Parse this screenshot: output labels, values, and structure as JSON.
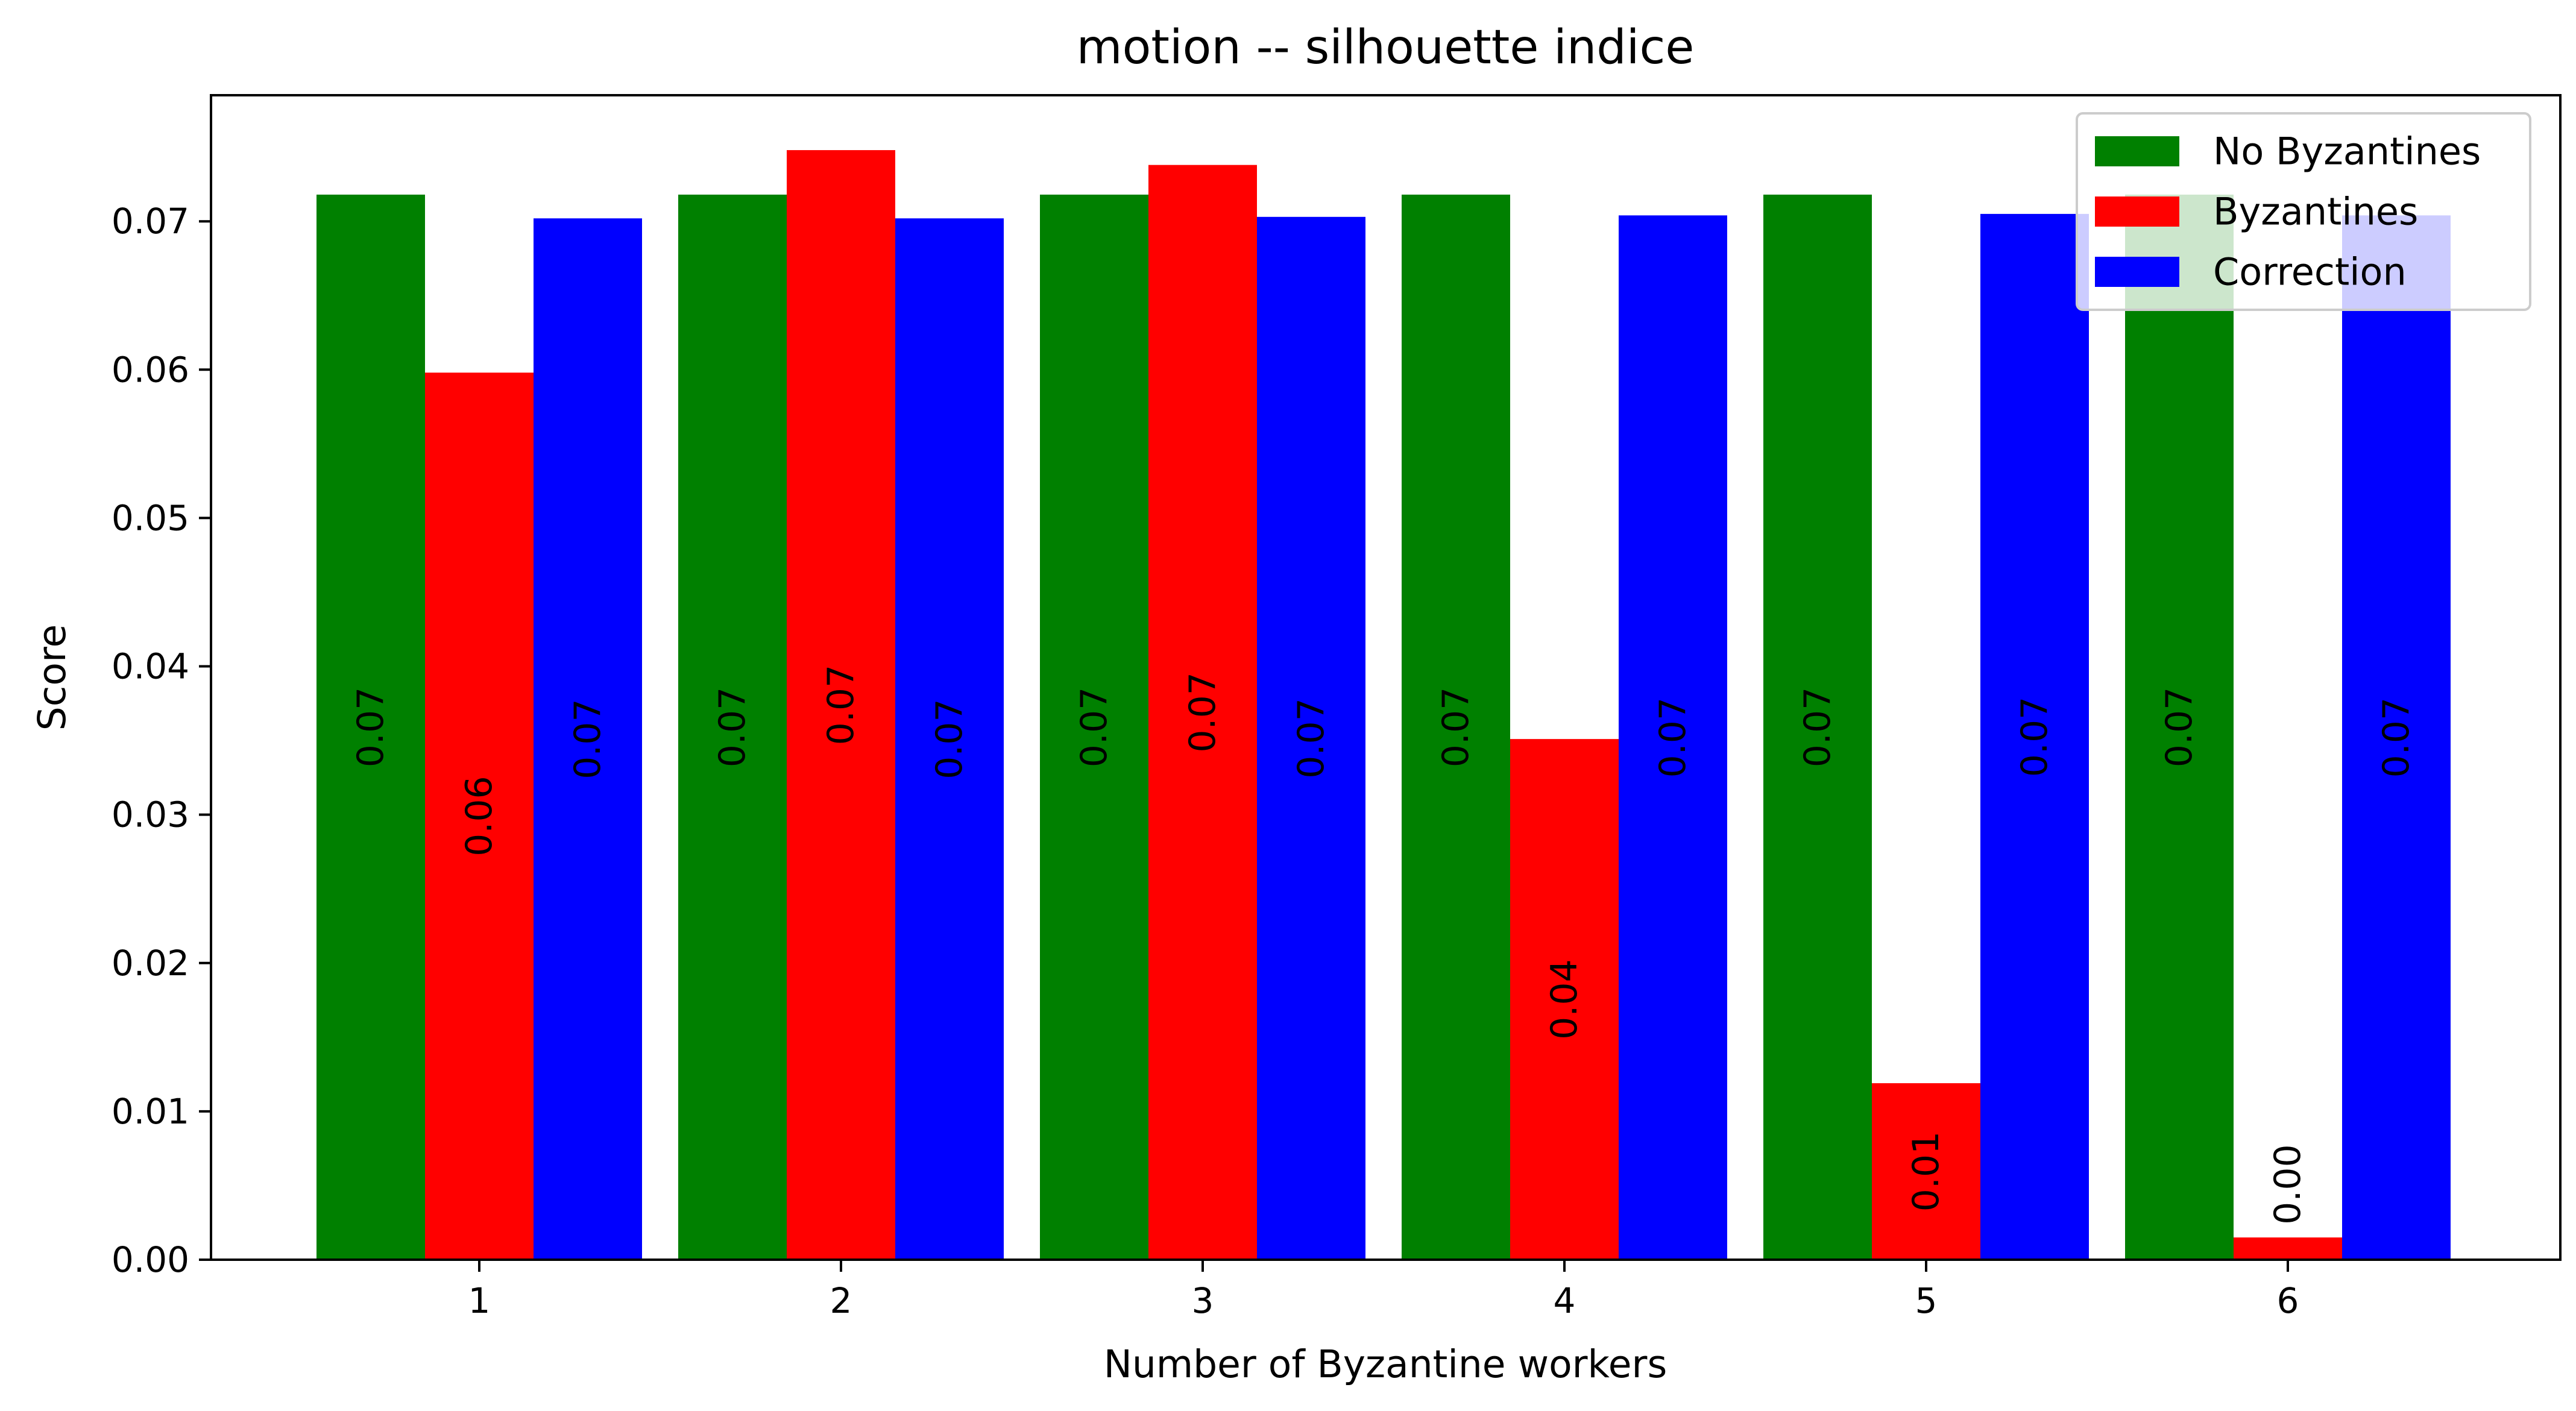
{
  "chart_data": {
    "type": "bar",
    "title": "motion -- silhouette indice",
    "xlabel": "Number of Byzantine workers",
    "ylabel": "Score",
    "categories": [
      "1",
      "2",
      "3",
      "4",
      "5",
      "6"
    ],
    "ylim": [
      0,
      0.0785
    ],
    "yticks": [
      0.0,
      0.01,
      0.02,
      0.03,
      0.04,
      0.05,
      0.06,
      0.07
    ],
    "ytick_labels": [
      "0.00",
      "0.01",
      "0.02",
      "0.03",
      "0.04",
      "0.05",
      "0.06",
      "0.07"
    ],
    "grid": false,
    "legend_position": "top-right",
    "series": [
      {
        "name": "No Byzantines",
        "color": "#008000",
        "values": [
          0.0718,
          0.0718,
          0.0718,
          0.0718,
          0.0718,
          0.0718
        ],
        "labels": [
          "0.07",
          "0.07",
          "0.07",
          "0.07",
          "0.07",
          "0.07"
        ]
      },
      {
        "name": "Byzantines",
        "color": "#ff0000",
        "values": [
          0.0598,
          0.0748,
          0.0738,
          0.0351,
          0.0119,
          0.0015
        ],
        "labels": [
          "0.06",
          "0.07",
          "0.07",
          "0.04",
          "0.01",
          "0.00"
        ]
      },
      {
        "name": "Correction",
        "color": "#0000ff",
        "values": [
          0.0702,
          0.0702,
          0.0703,
          0.0704,
          0.0705,
          0.0704
        ],
        "labels": [
          "0.07",
          "0.07",
          "0.07",
          "0.07",
          "0.07",
          "0.07"
        ]
      }
    ]
  }
}
